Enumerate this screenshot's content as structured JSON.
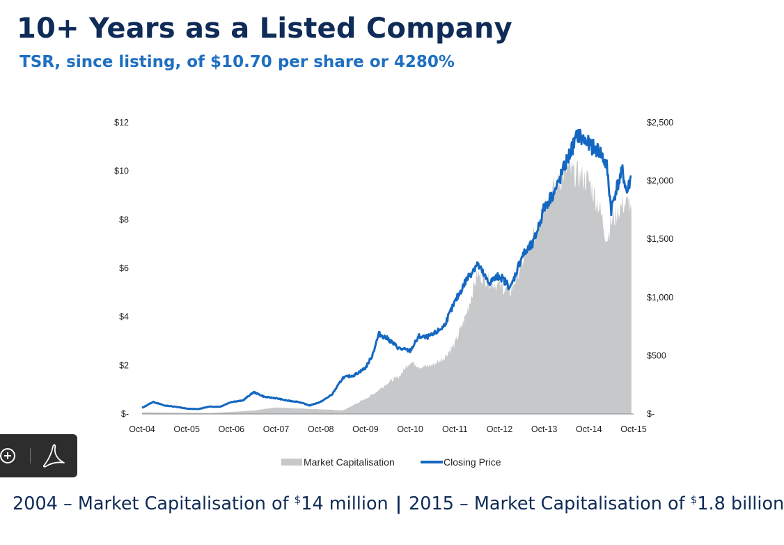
{
  "header": {
    "title": "10+ Years as a Listed Company",
    "subtitle": "TSR, since listing, of $10.70 per share or 4280%"
  },
  "chart_data": {
    "type": "line+area",
    "x_unit": "month",
    "x_ticks": [
      "Oct-04",
      "Oct-05",
      "Oct-06",
      "Oct-07",
      "Oct-08",
      "Oct-09",
      "Oct-10",
      "Oct-11",
      "Oct-12",
      "Oct-13",
      "Oct-14",
      "Oct-15"
    ],
    "y_left": {
      "ticks": [
        "$-",
        "$2",
        "$4",
        "$6",
        "$8",
        "$10",
        "$12"
      ],
      "range": [
        0,
        12
      ]
    },
    "y_right": {
      "ticks": [
        "$-",
        "$500",
        "$1,000",
        "$1,500",
        "$2,000",
        "$2,500"
      ],
      "range": [
        0,
        2500
      ]
    },
    "legend": {
      "position": "bottom",
      "entries": [
        "Market Capitalisation",
        "Closing Price"
      ]
    },
    "colors": {
      "market_cap": "#c6c8ca",
      "closing_price": "#1467c1"
    },
    "series": [
      {
        "name": "Closing Price",
        "axis": "left",
        "x": [
          0,
          0.25,
          0.5,
          0.75,
          1,
          1.25,
          1.5,
          1.75,
          2,
          2.25,
          2.5,
          2.75,
          3,
          3.25,
          3.5,
          3.75,
          4,
          4.25,
          4.5,
          4.75,
          5,
          5.15,
          5.3,
          5.5,
          5.75,
          6,
          6.2,
          6.35,
          6.5,
          6.75,
          7,
          7.25,
          7.5,
          7.75,
          8,
          8.25,
          8.5,
          8.75,
          9,
          9.1,
          9.25,
          9.5,
          9.75,
          10,
          10.25,
          10.4,
          10.5,
          10.6,
          10.75,
          10.85,
          10.95
        ],
        "values": [
          0.25,
          0.5,
          0.35,
          0.3,
          0.22,
          0.2,
          0.3,
          0.3,
          0.5,
          0.55,
          0.9,
          0.7,
          0.65,
          0.55,
          0.5,
          0.35,
          0.5,
          0.8,
          1.5,
          1.6,
          1.9,
          2.4,
          3.3,
          3.1,
          2.7,
          2.6,
          3.2,
          3.15,
          3.25,
          3.6,
          4.6,
          5.5,
          6.2,
          5.4,
          5.7,
          5.2,
          6.5,
          7.0,
          8.5,
          8.8,
          9.2,
          10.4,
          11.5,
          11.1,
          10.8,
          10.2,
          8.4,
          9.2,
          10.0,
          9.1,
          9.8
        ]
      },
      {
        "name": "Market Capitalisation",
        "axis": "right",
        "x": [
          0,
          0.5,
          1,
          1.5,
          2,
          2.5,
          3,
          3.5,
          4,
          4.5,
          5,
          5.25,
          5.5,
          5.75,
          6,
          6.25,
          6.5,
          6.75,
          7,
          7.25,
          7.5,
          7.75,
          8,
          8.25,
          8.5,
          8.75,
          9,
          9.25,
          9.5,
          9.75,
          10,
          10.25,
          10.4,
          10.5,
          10.6,
          10.75,
          10.95
        ],
        "values": [
          14,
          12,
          10,
          8,
          18,
          30,
          55,
          48,
          40,
          30,
          130,
          190,
          270,
          320,
          450,
          400,
          420,
          480,
          600,
          850,
          1200,
          1150,
          1100,
          1050,
          1300,
          1500,
          1800,
          1950,
          2100,
          2050,
          2000,
          1750,
          1500,
          1650,
          1700,
          1800,
          1800
        ]
      }
    ]
  },
  "footer": {
    "part1": "2004 – Market Capitalisation of ",
    "part1_sup": "$",
    "part1_rest": "14 million",
    "separator": "|",
    "part2": "2015 – Market Capitalisation of ",
    "part2_sup": "$",
    "part2_rest": "1.8 billion"
  },
  "toolbar": {
    "icons": [
      "zoom-in-icon",
      "pdf-icon"
    ]
  }
}
